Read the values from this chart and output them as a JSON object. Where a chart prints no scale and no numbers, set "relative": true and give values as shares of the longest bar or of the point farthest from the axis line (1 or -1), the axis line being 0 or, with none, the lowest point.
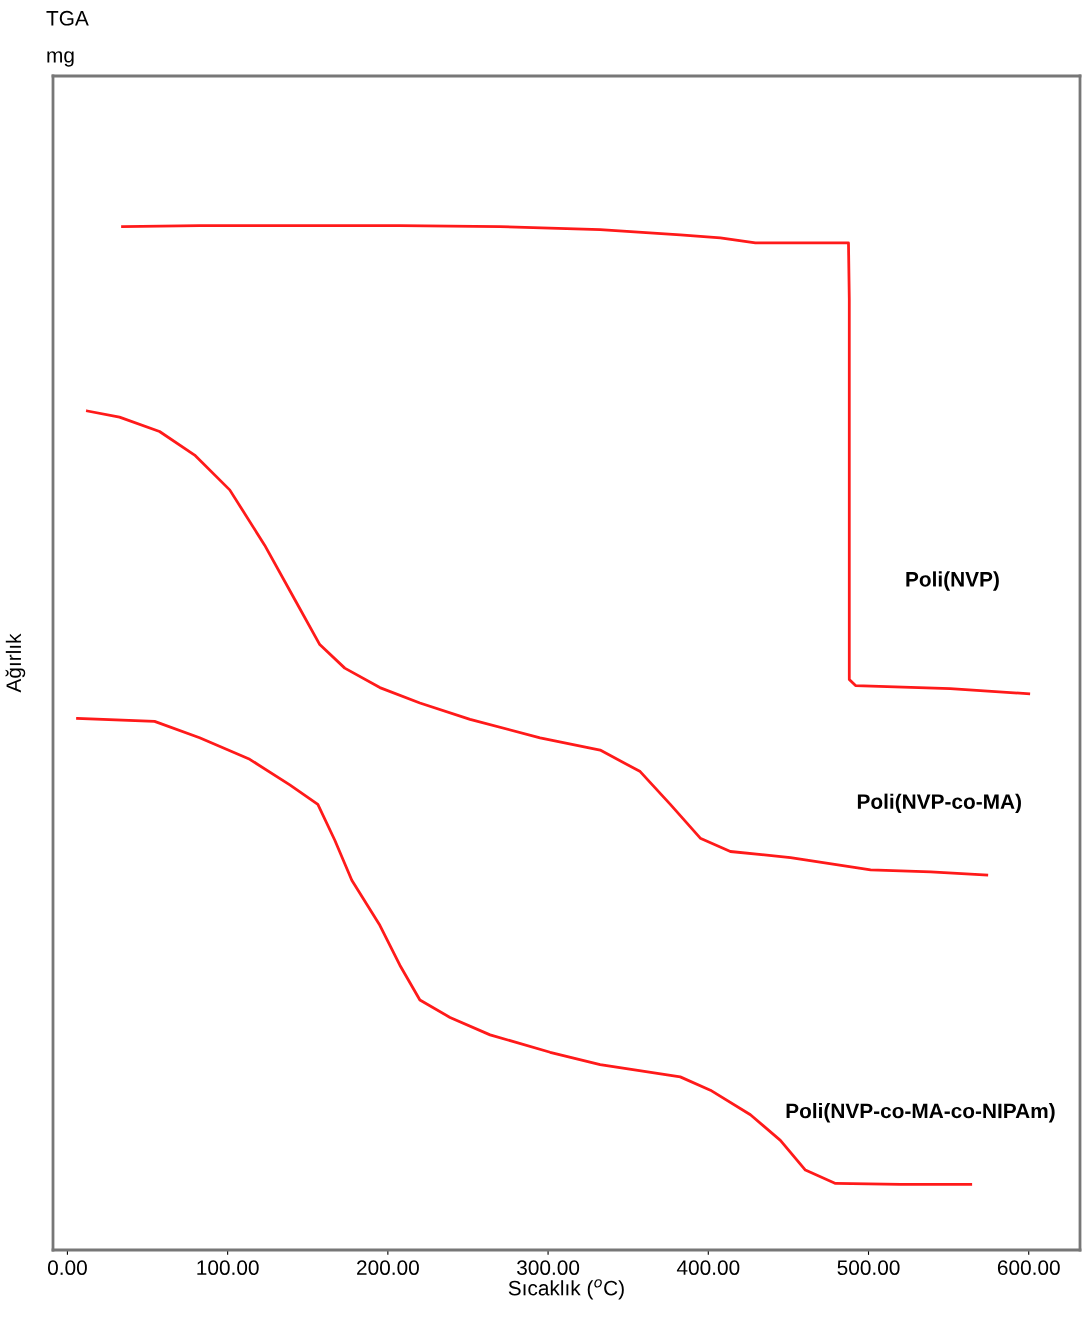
{
  "chart_data": {
    "type": "line",
    "title": "TGA",
    "xlabel": "Sıcaklık ($^{o}$C)",
    "ylabel": "Ağırlık",
    "annotations": [
      "mg"
    ],
    "relative": true,
    "tick_labels": "x",
    "grid": false,
    "legend": false,
    "marker": "none",
    "line_style": "solid",
    "xlim": [
      -9,
      632
    ],
    "xticks": [
      {
        "value": 0,
        "label": "0.00"
      },
      {
        "value": 100,
        "label": "100.00"
      },
      {
        "value": 200,
        "label": "200.00"
      },
      {
        "value": 300,
        "label": "300.00"
      },
      {
        "value": 400,
        "label": "400.00"
      },
      {
        "value": 500,
        "label": "500.00"
      },
      {
        "value": 600,
        "label": "600.00"
      }
    ],
    "series": [
      {
        "name": "Poli(NVP)",
        "color": "#ff1a1a",
        "x": [
          34.4,
          82.5,
          145,
          207.5,
          270,
          332.5,
          382.5,
          407.5,
          429.4,
          487.5,
          488,
          488,
          488,
          491.9,
          551,
          600
        ],
        "values": [
          0.999,
          1.0,
          1.0,
          1.0,
          0.999,
          0.996,
          0.991,
          0.988,
          0.983,
          0.983,
          0.928,
          0.732,
          0.557,
          0.551,
          0.548,
          0.543
        ]
      },
      {
        "name": "Poli(NVP-co-MA)",
        "color": "#ff1a1a",
        "x": [
          12.5,
          32.5,
          57.5,
          79.4,
          101.3,
          123.1,
          141.9,
          157.5,
          173.1,
          195,
          220,
          251.3,
          295,
          332.5,
          357.5,
          376.3,
          395,
          413.8,
          451.3,
          501.3,
          538.8,
          573.8
        ],
        "values": [
          0.819,
          0.813,
          0.799,
          0.776,
          0.742,
          0.688,
          0.635,
          0.591,
          0.568,
          0.549,
          0.534,
          0.518,
          0.5,
          0.488,
          0.467,
          0.435,
          0.402,
          0.389,
          0.383,
          0.371,
          0.369,
          0.366
        ]
      },
      {
        "name": "Poli(NVP-co-MA-co-NIPAm)",
        "color": "#ff1a1a",
        "x": [
          6.3,
          54.4,
          82.5,
          113.8,
          138.8,
          156.3,
          166.9,
          177.5,
          195,
          207.5,
          220,
          238.8,
          263.8,
          301.3,
          332.5,
          382.5,
          401.3,
          426.3,
          445,
          460.6,
          479.4,
          520,
          563.8
        ],
        "values": [
          0.519,
          0.516,
          0.5,
          0.479,
          0.454,
          0.435,
          0.4,
          0.361,
          0.317,
          0.278,
          0.244,
          0.227,
          0.21,
          0.193,
          0.181,
          0.169,
          0.156,
          0.132,
          0.107,
          0.078,
          0.065,
          0.064,
          0.064
        ]
      }
    ]
  }
}
